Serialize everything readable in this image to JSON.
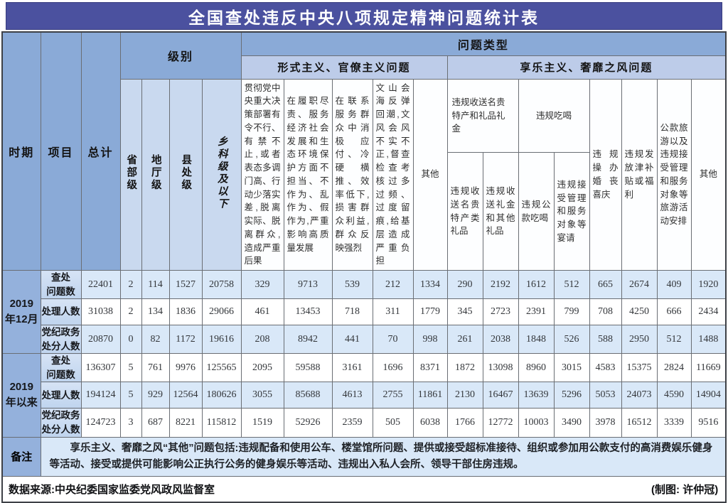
{
  "title": "全国查处违反中央八项规定精神问题统计表",
  "colors": {
    "title_bg": "#4b519f",
    "header_dark_blue": "#8aaad7",
    "header_mid_blue": "#bdcce9",
    "header_level_blue": "#c9d9ef",
    "stripe_blue": "#d9e8f8",
    "period_cell_blue": "#94b1dc",
    "item_cell_blue": "#c9dcf2",
    "border": "#6a6e74"
  },
  "header": {
    "period": "时期",
    "item": "项目",
    "total": "总计",
    "level_group": "级别",
    "levels": [
      "省部级",
      "地厅级",
      "县处级",
      "乡科级及以下"
    ],
    "problem_type": "问题类型",
    "formalism_group": "形式主义、官僚主义问题",
    "formalism_cols": [
      "贯彻党中央重大决策部署有令不行、有禁不止,或者表态多调门高、行动少落实差,脱离实际、脱离群众,造成严重后果",
      "在履职尽责、服务经济社会发展和生态环境保护方面不担当、不作为、乱作为、假作为,严重影响高质量发展",
      "在联系服务群众中消极应付、冷硬横推、效率低下,损害群众利益,群众反映强烈",
      "文山会海反弹回潮,文风会风不实不正,督查检查考核过多过频、过度留痕,给基层造成严重负担"
    ],
    "formalism_other": "其他",
    "hedonism_group": "享乐主义、奢靡之风问题",
    "gifts_group": "违规收送名贵特产和礼品礼金",
    "gifts_cols": [
      "违规收送名贵特产类礼品",
      "违规收送礼金和其他礼品"
    ],
    "dining_group": "违规吃喝",
    "dining_cols": [
      "违规公款吃喝",
      "违规接受管理和服务对象等宴请"
    ],
    "weddings": "违规操办婚丧喜庆",
    "allowances": "违规发放津补贴或福利",
    "travel": "公款旅游以及违规接受管理和服务对象等旅游活动安排",
    "hedonism_other": "其他"
  },
  "table": {
    "period_display": {
      "2019年12月": "2019\n年12月",
      "2019年以来": "2019\n年以来"
    },
    "measure_display": {
      "查处问题数": "查处\n问题数",
      "处理人数": "处理人数",
      "党纪政务处分人数": "党纪政务\n处分人数"
    }
  },
  "chart_data": {
    "type": "table",
    "title": "全国查处违反中央八项规定精神问题统计表",
    "columns": [
      "总计",
      "省部级",
      "地厅级",
      "县处级",
      "乡科级及以下",
      "形式主义、官僚主义问题-贯彻党中央重大决策部署有令不行、有禁不止,或者表态多调门高、行动少落实差,脱离实际、脱离群众,造成严重后果",
      "形式主义、官僚主义问题-在履职尽责、服务经济社会发展和生态环境保护方面不担当、不作为、乱作为、假作为,严重影响高质量发展",
      "形式主义、官僚主义问题-在联系服务群众中消极应付、冷硬横推、效率低下,损害群众利益,群众反映强烈",
      "形式主义、官僚主义问题-文山会海反弹回潮,文风会风不实不正,督查检查考核过多过频、过度留痕,给基层造成严重负担",
      "形式主义、官僚主义问题-其他",
      "违规收送名贵特产类礼品",
      "违规收送礼金和其他礼品",
      "违规公款吃喝",
      "违规接受管理和服务对象等宴请",
      "违规操办婚丧喜庆",
      "违规发放津补贴或福利",
      "公款旅游以及违规接受管理和服务对象等旅游活动安排",
      "享乐主义、奢靡之风问题-其他"
    ],
    "rows": [
      {
        "period": "2019年12月",
        "measure": "查处问题数",
        "values": [
          22401,
          2,
          114,
          1527,
          20758,
          329,
          9713,
          539,
          212,
          1334,
          290,
          2192,
          1612,
          512,
          665,
          2674,
          409,
          1920
        ]
      },
      {
        "period": "2019年12月",
        "measure": "处理人数",
        "values": [
          31038,
          2,
          134,
          1836,
          29066,
          461,
          13453,
          718,
          311,
          1779,
          345,
          2723,
          2391,
          799,
          708,
          4250,
          666,
          2434
        ]
      },
      {
        "period": "2019年12月",
        "measure": "党纪政务处分人数",
        "values": [
          20870,
          0,
          82,
          1172,
          19616,
          208,
          8942,
          441,
          70,
          998,
          261,
          2038,
          1848,
          526,
          588,
          2950,
          512,
          1488
        ]
      },
      {
        "period": "2019年以来",
        "measure": "查处问题数",
        "values": [
          136307,
          5,
          761,
          9976,
          125565,
          2095,
          59588,
          3161,
          1696,
          8371,
          1872,
          13098,
          8960,
          3015,
          4583,
          15375,
          2824,
          11669
        ]
      },
      {
        "period": "2019年以来",
        "measure": "处理人数",
        "values": [
          194124,
          5,
          929,
          12564,
          180626,
          3055,
          85688,
          4613,
          2755,
          11861,
          2130,
          16467,
          13639,
          5296,
          5053,
          24073,
          4590,
          14904
        ]
      },
      {
        "period": "2019年以来",
        "measure": "党纪政务处分人数",
        "values": [
          124723,
          3,
          687,
          8221,
          115812,
          1519,
          52926,
          2359,
          505,
          6038,
          1766,
          12772,
          10003,
          3490,
          3978,
          16512,
          3339,
          9516
        ]
      }
    ]
  },
  "remarks": {
    "label": "备注",
    "text": "享乐主义、奢靡之风“其他”问题包括:违规配备和使用公车、楼堂馆所问题、提供或接受超标准接待、组织或参加用公款支付的高消费娱乐健身等活动、接受或提供可能影响公正执行公务的健身娱乐等活动、违规出入私人会所、领导干部住房违规。"
  },
  "footer": {
    "source": "数据来源:中央纪委国家监委党风政风监督室",
    "credit": "(制图: 许仲冠)"
  }
}
